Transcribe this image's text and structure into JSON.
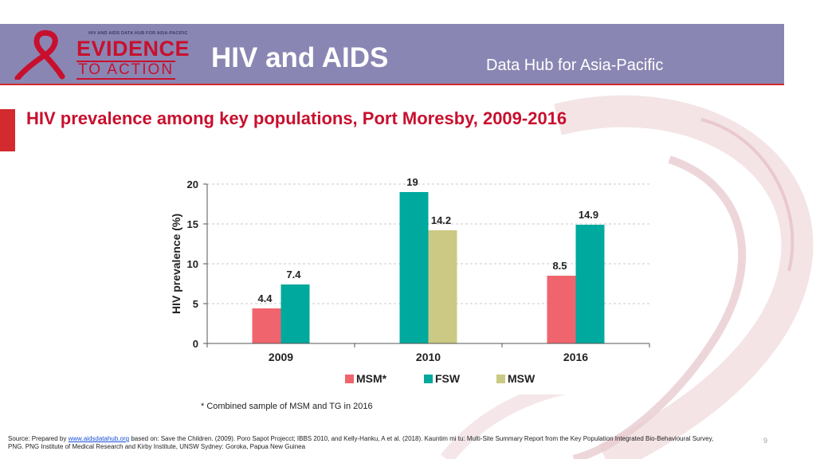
{
  "header": {
    "logo_small_text": "HIV AND AIDS DATA HUB FOR ASIA-PACIFIC",
    "logo_evidence": "EVIDENCE",
    "logo_to_action": "TO ACTION",
    "title": "HIV and AIDS",
    "subtitle": "Data Hub for Asia-Pacific"
  },
  "page_title": "HIV prevalence among key populations, Port Moresby, 2009-2016",
  "chart_data": {
    "type": "bar",
    "title": "HIV prevalence among key populations, Port Moresby, 2009-2016",
    "xlabel": "",
    "ylabel": "HIV prevalence (%)",
    "ylim": [
      0,
      20
    ],
    "yticks": [
      "0",
      "5",
      "10",
      "15",
      "20"
    ],
    "grid": true,
    "legend_position": "bottom",
    "categories": [
      "2009",
      "2010",
      "2016"
    ],
    "series": [
      {
        "name": "MSM*",
        "color": "#f0646e",
        "values": [
          4.4,
          null,
          8.5
        ],
        "labels": [
          "4.4",
          "",
          "8.5"
        ]
      },
      {
        "name": "FSW",
        "color": "#00a99d",
        "values": [
          7.4,
          19,
          14.9
        ],
        "labels": [
          "7.4",
          "19",
          "14.9"
        ]
      },
      {
        "name": "MSW",
        "color": "#cbc983",
        "values": [
          null,
          14.2,
          null
        ],
        "labels": [
          "",
          "14.2",
          ""
        ]
      }
    ]
  },
  "footnote": "* Combined sample of MSM and TG in 2016",
  "source": {
    "prefix": "Source: Prepared by ",
    "link": "www.aidsdatahub.org",
    "text": "  based on: Save the Children. (2009). Poro Sapot Projecct; IBBS 2010, and Kelly-Hanku, A et al. (2018). Kauntim mi tu: Multi-Site Summary Report from the Key Population Integrated Bio-Behavioural Survey, PNG. PNG Institute of Medical Research and Kirby Institute, UNSW Sydney: Goroka, Papua New Guinea"
  },
  "page_number": "9"
}
